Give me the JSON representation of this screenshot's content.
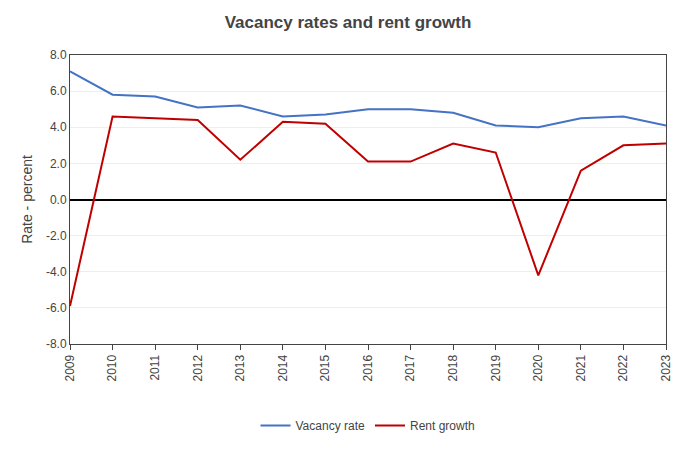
{
  "chart_data": {
    "type": "line",
    "title": "Vacancy rates and rent growth",
    "ylabel": "Rate - percent",
    "x": [
      2009,
      2010,
      2011,
      2012,
      2013,
      2014,
      2015,
      2016,
      2017,
      2018,
      2019,
      2020,
      2021,
      2022,
      2023
    ],
    "series": [
      {
        "name": "Vacancy rate",
        "color": "#4472C4",
        "values": [
          7.1,
          5.8,
          5.7,
          5.1,
          5.2,
          4.6,
          4.7,
          5.0,
          5.0,
          4.8,
          4.1,
          4.0,
          4.5,
          4.6,
          4.1
        ]
      },
      {
        "name": "Rent growth",
        "color": "#C00000",
        "values": [
          -5.9,
          4.6,
          4.5,
          4.4,
          2.2,
          4.3,
          4.2,
          2.1,
          2.1,
          3.1,
          2.6,
          -4.2,
          1.6,
          3.0,
          3.1
        ]
      }
    ],
    "xlim": [
      2009,
      2023
    ],
    "xticks": [
      2009,
      2010,
      2011,
      2012,
      2013,
      2014,
      2015,
      2016,
      2017,
      2018,
      2019,
      2020,
      2021,
      2022,
      2023
    ],
    "ylim": [
      -8.0,
      8.0
    ],
    "yticks": [
      {
        "value": -8.0,
        "label": "-8.0"
      },
      {
        "value": -6.0,
        "label": "-6.0"
      },
      {
        "value": -4.0,
        "label": "-4.0"
      },
      {
        "value": -2.0,
        "label": "-2.0"
      },
      {
        "value": 0.0,
        "label": "0.0"
      },
      {
        "value": 2.0,
        "label": "2.0"
      },
      {
        "value": 4.0,
        "label": "4.0"
      },
      {
        "value": 6.0,
        "label": "6.0"
      },
      {
        "value": 8.0,
        "label": "8.0"
      }
    ],
    "grid": true,
    "legend": "bottom"
  }
}
